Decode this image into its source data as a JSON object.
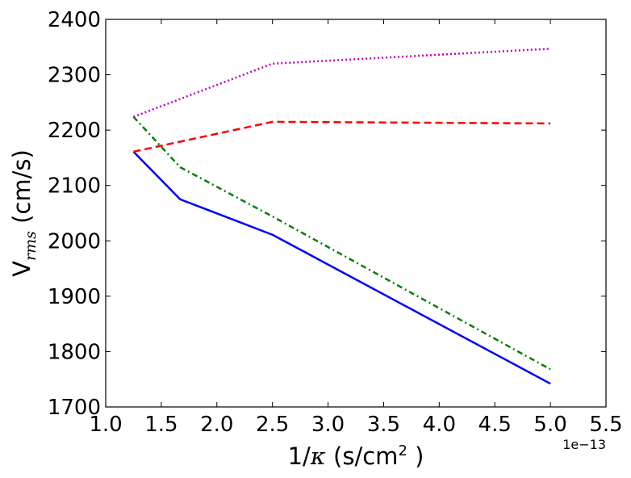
{
  "chart_data": {
    "type": "line",
    "title": "",
    "xlabel": {
      "prefix": "1/",
      "symbol": "κ",
      "unit_text": " (s/cm",
      "superscript": "2",
      "suffix": " )"
    },
    "ylabel": {
      "main": "V",
      "subscript": "rms",
      "unit_text": " (cm/s)"
    },
    "x_offset_label": "1e−13",
    "xlim": [
      1.0,
      5.5
    ],
    "ylim": [
      1700,
      2400
    ],
    "xticks": [
      1.0,
      1.5,
      2.0,
      2.5,
      3.0,
      3.5,
      4.0,
      4.5,
      5.0,
      5.5
    ],
    "xtick_labels": [
      "1.0",
      "1.5",
      "2.0",
      "2.5",
      "3.0",
      "3.5",
      "4.0",
      "4.5",
      "5.0",
      "5.5"
    ],
    "yticks": [
      1700,
      1800,
      1900,
      2000,
      2100,
      2200,
      2300,
      2400
    ],
    "ytick_labels": [
      "1700",
      "1800",
      "1900",
      "2000",
      "2100",
      "2200",
      "2300",
      "2400"
    ],
    "grid": false,
    "series": [
      {
        "name": "blue solid",
        "color": "#0000ff",
        "style": "solid",
        "x": [
          1.25,
          1.67,
          2.5,
          5.0
        ],
        "y": [
          2161,
          2075,
          2011,
          1742
        ]
      },
      {
        "name": "green dash-dot",
        "color": "#008000",
        "style": "dashdot",
        "x": [
          1.25,
          1.67,
          2.5,
          5.0
        ],
        "y": [
          2224,
          2133,
          2044,
          1768
        ]
      },
      {
        "name": "red dashed",
        "color": "#ff0000",
        "style": "dashed",
        "x": [
          1.25,
          2.5,
          5.0
        ],
        "y": [
          2161,
          2215,
          2212
        ]
      },
      {
        "name": "magenta dotted",
        "color": "#bf00bf",
        "style": "dotted",
        "x": [
          1.25,
          2.5,
          5.0
        ],
        "y": [
          2224,
          2320,
          2347
        ]
      }
    ]
  }
}
